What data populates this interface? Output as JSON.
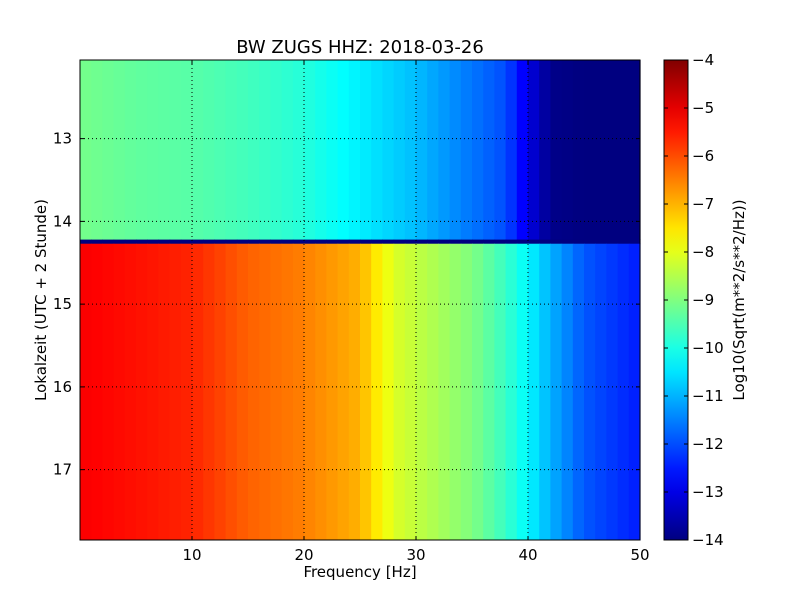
{
  "chart_data": {
    "type": "heatmap",
    "title": "BW ZUGS HHZ: 2018-03-26",
    "xlabel": "Frequency [Hz]",
    "ylabel": "Lokalzeit (UTC + 2 Stunde)",
    "xlim": [
      0,
      50
    ],
    "ylim": [
      12.05,
      17.85
    ],
    "y_inverted": true,
    "x_ticks": [
      10,
      20,
      30,
      40,
      50
    ],
    "x_tick_labels": [
      "10",
      "20",
      "30",
      "40",
      "50"
    ],
    "y_ticks": [
      13,
      14,
      15,
      16,
      17
    ],
    "y_tick_labels": [
      "13",
      "14",
      "15",
      "16",
      "17"
    ],
    "grid": true,
    "colorbar": {
      "label": "Log10(Sqrt(m**2/s**2/Hz))",
      "range": [
        -14,
        -4
      ],
      "ticks": [
        -4,
        -5,
        -6,
        -7,
        -8,
        -9,
        -10,
        -11,
        -12,
        -13,
        -14
      ],
      "tick_labels": [
        "−4",
        "−5",
        "−6",
        "−7",
        "−8",
        "−9",
        "−10",
        "−11",
        "−12",
        "−13",
        "−14"
      ],
      "colormap": "jet"
    },
    "regions": [
      {
        "time_range": [
          12.05,
          14.22
        ],
        "profile_freq": [
          0,
          5,
          10,
          15,
          20,
          25,
          30,
          35,
          38,
          40,
          42,
          45,
          50
        ],
        "profile_value": [
          -9.1,
          -9.3,
          -9.4,
          -9.6,
          -9.9,
          -10.4,
          -10.9,
          -11.6,
          -12.0,
          -13.0,
          -13.9,
          -14.0,
          -14.0
        ]
      },
      {
        "time_range": [
          14.22,
          14.27
        ],
        "constant_value": -14.0
      },
      {
        "time_range": [
          14.27,
          17.85
        ],
        "profile_freq": [
          0,
          5,
          10,
          15,
          20,
          25,
          28,
          32,
          35,
          38,
          40,
          42,
          45,
          50
        ],
        "profile_value": [
          -5.2,
          -5.4,
          -5.6,
          -6.2,
          -6.5,
          -7.0,
          -8.1,
          -8.6,
          -9.0,
          -9.7,
          -10.3,
          -11.0,
          -11.9,
          -12.5
        ]
      }
    ]
  }
}
